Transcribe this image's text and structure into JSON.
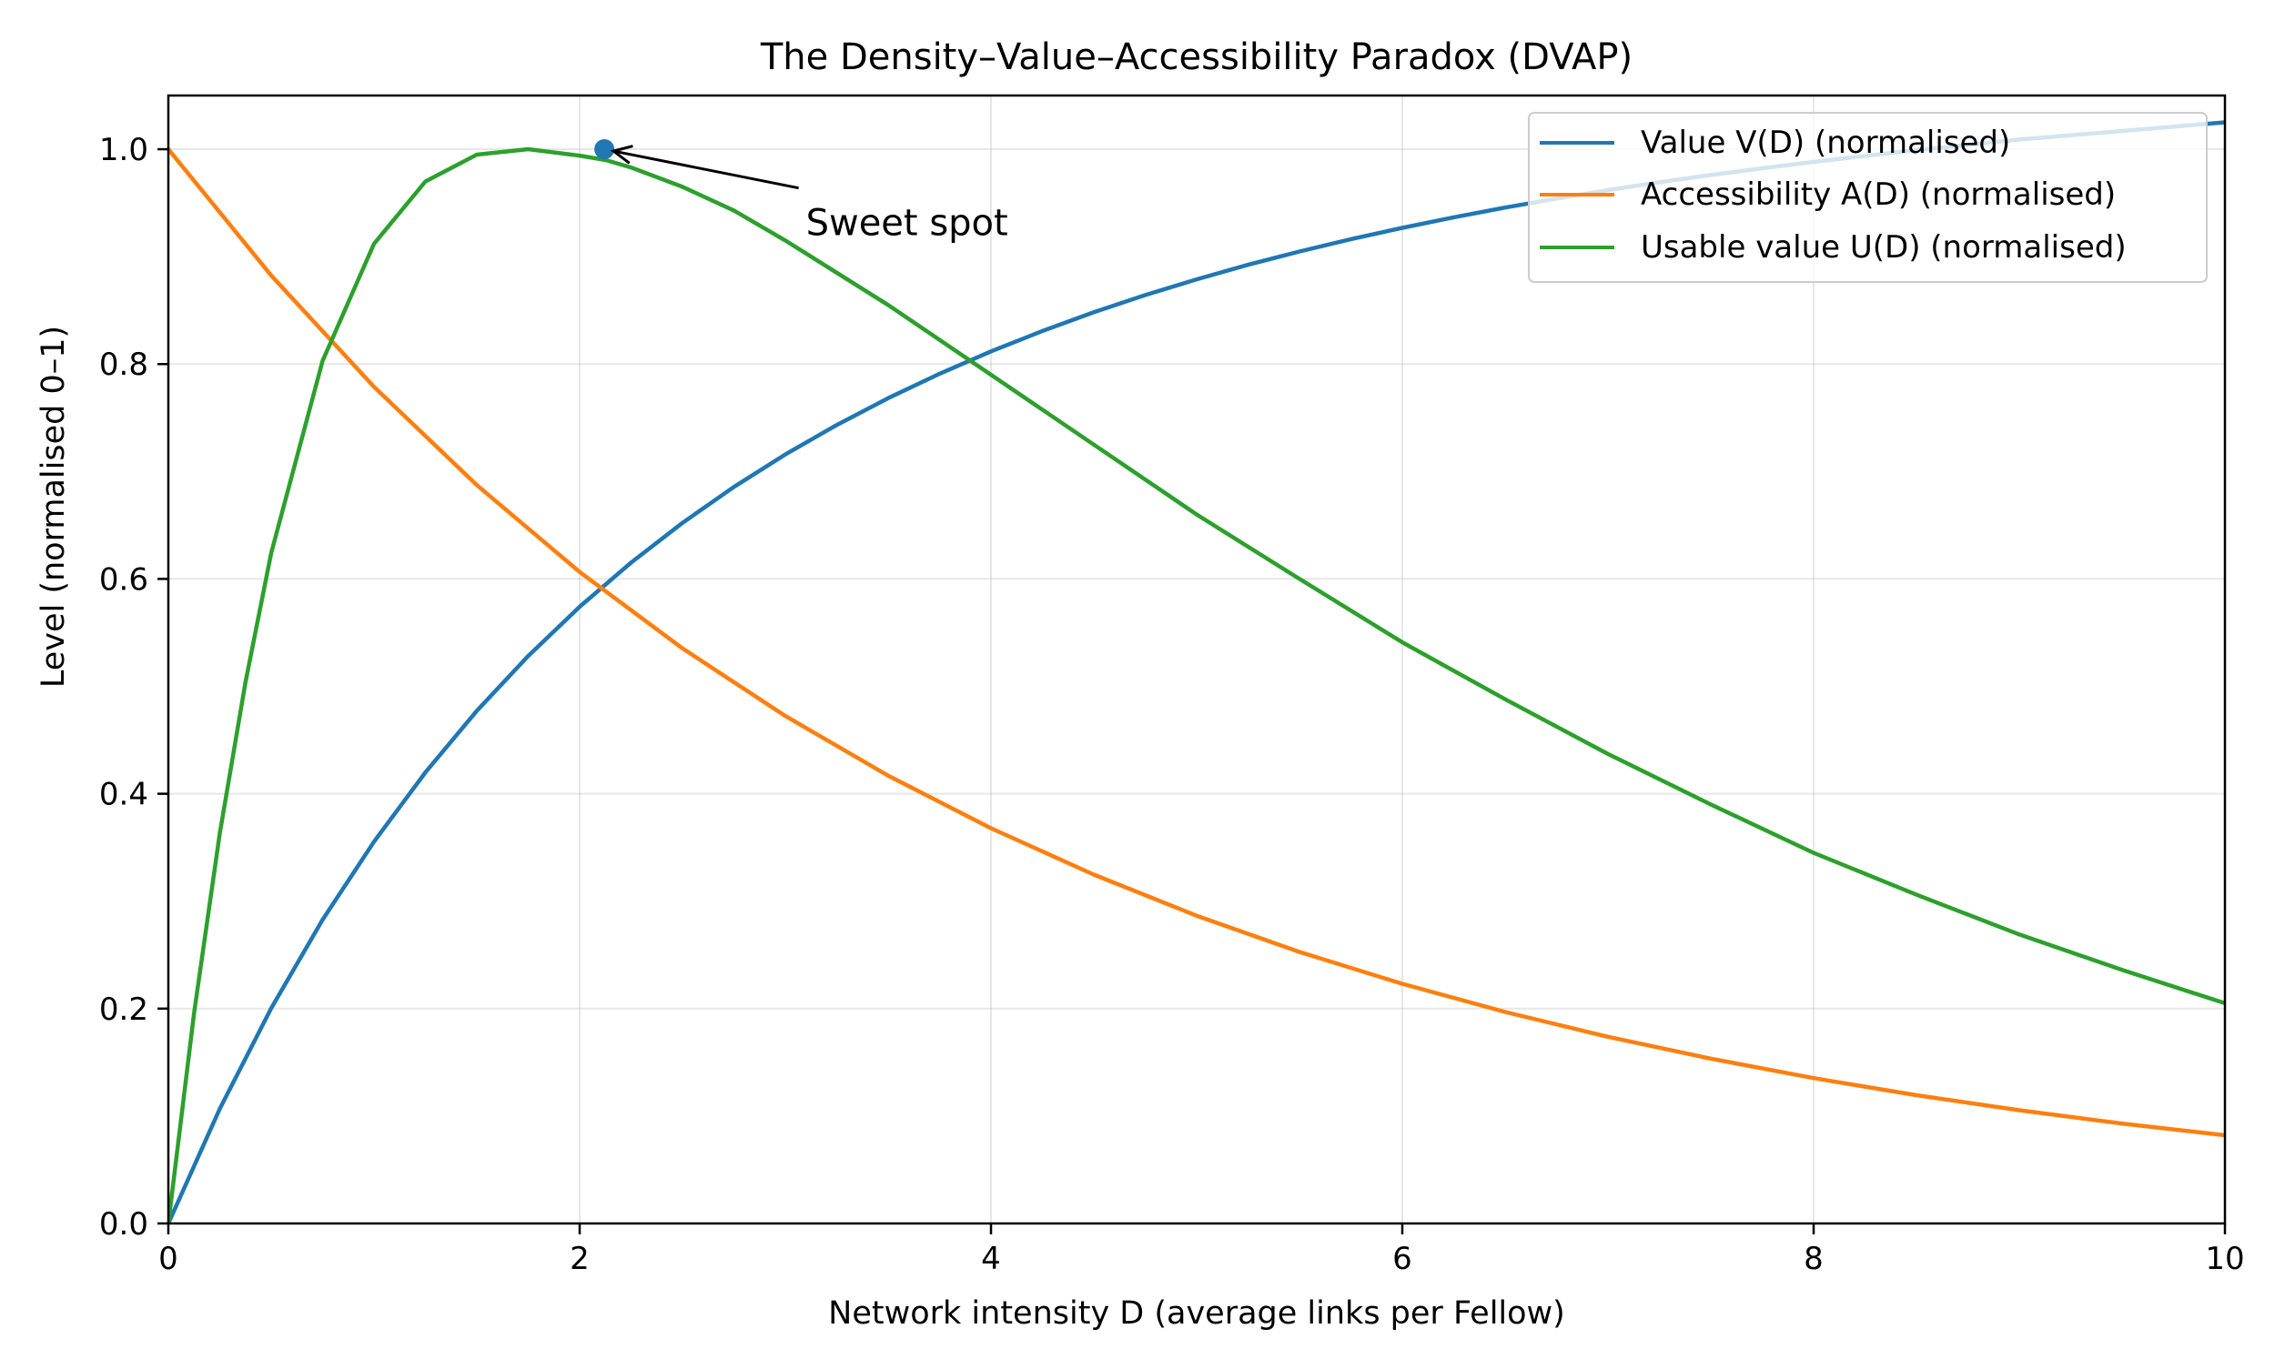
{
  "chart_data": {
    "type": "line",
    "title": "The Density–Value–Accessibility Paradox (DVAP)",
    "xlabel": "Network intensity D (average links per Fellow)",
    "ylabel": "Level (normalised 0–1)",
    "xlim": [
      0,
      10
    ],
    "ylim": [
      0,
      1.05
    ],
    "x_ticks": [
      0,
      2,
      4,
      6,
      8,
      10
    ],
    "x_tick_labels": [
      "0",
      "2",
      "4",
      "6",
      "8",
      "10"
    ],
    "y_ticks": [
      0.0,
      0.2,
      0.4,
      0.6,
      0.8,
      1.0
    ],
    "y_tick_labels": [
      "0.0",
      "0.2",
      "0.4",
      "0.6",
      "0.8",
      "1.0"
    ],
    "grid": true,
    "legend_position": "top-right",
    "series": [
      {
        "name": "Value V(D) (normalised)",
        "color": "#1f77b4",
        "x": [
          0,
          0.25,
          0.5,
          0.75,
          1,
          1.25,
          1.5,
          1.75,
          2,
          2.25,
          2.5,
          2.75,
          3,
          3.25,
          3.5,
          3.75,
          4,
          4.25,
          4.5,
          4.75,
          5,
          5.25,
          5.5,
          5.75,
          6,
          6.25,
          6.5,
          6.75,
          7,
          7.25,
          7.5,
          7.75,
          8,
          8.25,
          8.5,
          8.75,
          9,
          9.25,
          9.5,
          9.75,
          10
        ],
        "values": [
          0.0,
          0.1067,
          0.2003,
          0.2827,
          0.3554,
          0.4199,
          0.4772,
          0.5283,
          0.5741,
          0.6152,
          0.6522,
          0.6856,
          0.7159,
          0.7433,
          0.7683,
          0.791,
          0.8118,
          0.8308,
          0.8482,
          0.8642,
          0.8789,
          0.8924,
          0.9048,
          0.9163,
          0.9268,
          0.9366,
          0.9457,
          0.9541,
          0.9619,
          0.9692,
          0.976,
          0.9823,
          0.9882,
          0.9938,
          0.999,
          1.004,
          1.009,
          1.013,
          1.017,
          1.021,
          1.025
        ]
      },
      {
        "name": "Accessibility A(D) (normalised)",
        "color": "#ff7f0e",
        "x": [
          0,
          0.5,
          1,
          1.5,
          2,
          2.5,
          3,
          3.5,
          4,
          4.5,
          5,
          5.5,
          6,
          6.5,
          7,
          7.5,
          8,
          8.5,
          9,
          9.5,
          10
        ],
        "values": [
          1.0,
          0.8825,
          0.7788,
          0.6873,
          0.6065,
          0.5353,
          0.4724,
          0.4169,
          0.3679,
          0.3247,
          0.2865,
          0.2528,
          0.2231,
          0.1969,
          0.1738,
          0.1534,
          0.1353,
          0.1194,
          0.1054,
          0.093,
          0.0821
        ]
      },
      {
        "name": "Usable value U(D) (normalised)",
        "color": "#2ca02c",
        "x": [
          0,
          0.125,
          0.25,
          0.375,
          0.5,
          0.75,
          1,
          1.25,
          1.5,
          1.75,
          2,
          2.125,
          2.25,
          2.5,
          2.75,
          3,
          3.5,
          4,
          4.5,
          5,
          5.5,
          6,
          6.5,
          7,
          7.5,
          8,
          8.5,
          9,
          9.5,
          10
        ],
        "values": [
          0.0,
          0.196,
          0.363,
          0.504,
          0.624,
          0.803,
          0.912,
          0.97,
          0.995,
          1.0,
          0.994,
          0.99,
          0.983,
          0.965,
          0.943,
          0.915,
          0.855,
          0.79,
          0.725,
          0.66,
          0.6,
          0.541,
          0.488,
          0.437,
          0.39,
          0.345,
          0.306,
          0.269,
          0.236,
          0.205
        ]
      }
    ],
    "highlight_point": {
      "x": 2.12,
      "y": 1.0,
      "color": "#1f77b4"
    },
    "annotation": {
      "text": "Sweet spot",
      "x": 3.1,
      "y": 0.93,
      "arrow_to_x": 2.12,
      "arrow_to_y": 1.0
    }
  }
}
